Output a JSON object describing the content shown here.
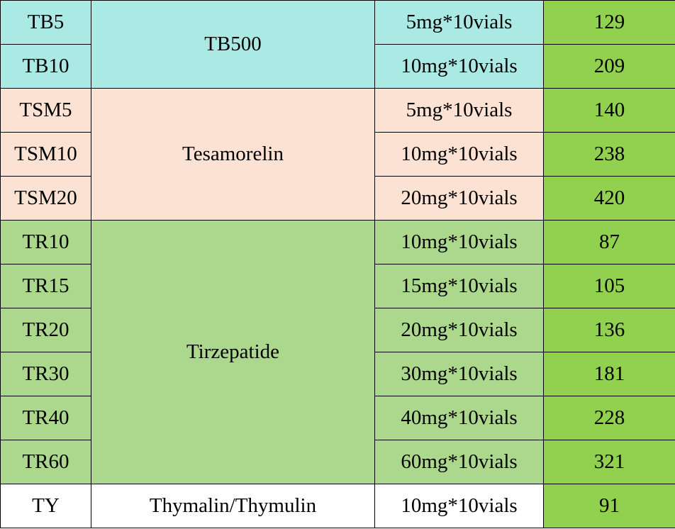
{
  "colors": {
    "tb500": "#abe9e4",
    "tesamorelin": "#fce2d3",
    "tirzepatide": "#acd88e",
    "thymalin": "#ffffff",
    "price_column": "#92d050",
    "border": "#000000"
  },
  "groups": [
    {
      "product": "TB500",
      "rows": [
        {
          "code": "TB5",
          "spec": "5mg*10vials",
          "price": "129"
        },
        {
          "code": "TB10",
          "spec": "10mg*10vials",
          "price": "209"
        }
      ]
    },
    {
      "product": "Tesamorelin",
      "rows": [
        {
          "code": "TSM5",
          "spec": "5mg*10vials",
          "price": "140"
        },
        {
          "code": "TSM10",
          "spec": "10mg*10vials",
          "price": "238"
        },
        {
          "code": "TSM20",
          "spec": "20mg*10vials",
          "price": "420"
        }
      ]
    },
    {
      "product": "Tirzepatide",
      "rows": [
        {
          "code": "TR10",
          "spec": "10mg*10vials",
          "price": "87"
        },
        {
          "code": "TR15",
          "spec": "15mg*10vials",
          "price": "105"
        },
        {
          "code": "TR20",
          "spec": "20mg*10vials",
          "price": "136"
        },
        {
          "code": "TR30",
          "spec": "30mg*10vials",
          "price": "181"
        },
        {
          "code": "TR40",
          "spec": "40mg*10vials",
          "price": "228"
        },
        {
          "code": "TR60",
          "spec": "60mg*10vials",
          "price": "321"
        }
      ]
    },
    {
      "product": "Thymalin/Thymulin",
      "rows": [
        {
          "code": "TY",
          "spec": "10mg*10vials",
          "price": "91"
        }
      ]
    }
  ]
}
